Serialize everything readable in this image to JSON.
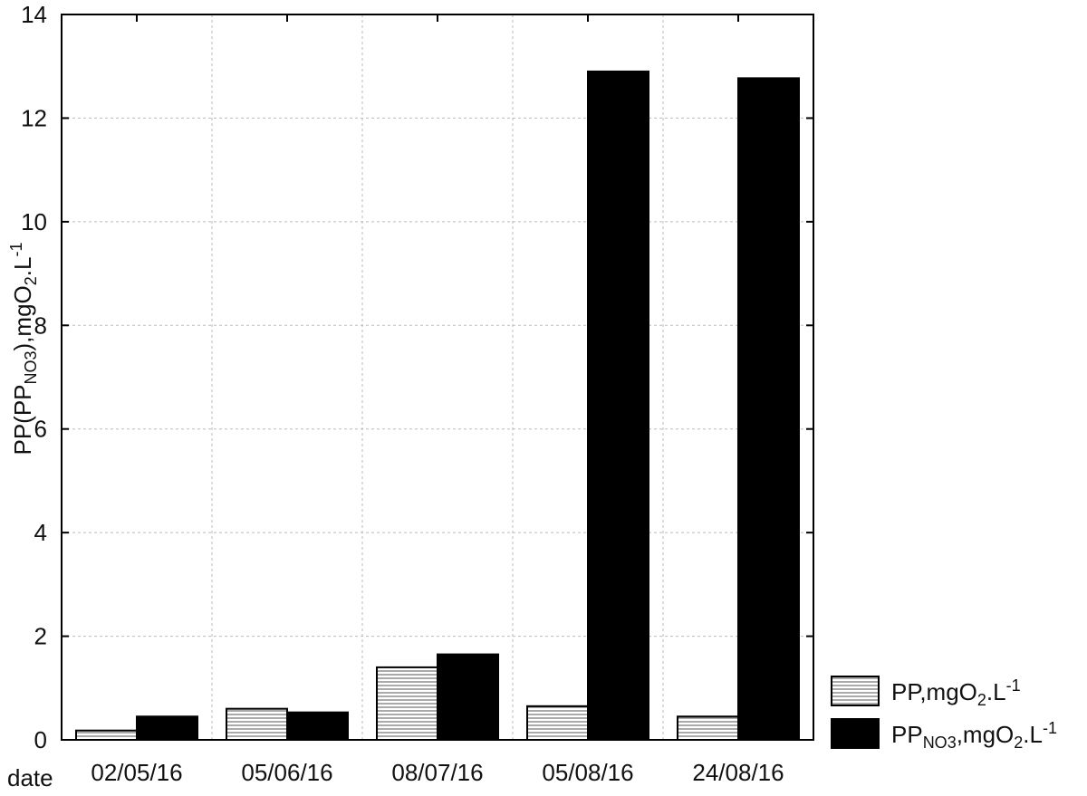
{
  "chart_data": {
    "type": "bar",
    "categories": [
      "02/05/16",
      "05/06/16",
      "08/07/16",
      "05/08/16",
      "24/08/16"
    ],
    "series": [
      {
        "name_main": "PP,mgO",
        "name_sub": "2",
        "name_suffix": ".L",
        "name_sup": "-1",
        "values": [
          0.18,
          0.6,
          1.4,
          0.65,
          0.45
        ],
        "fill": "hatched-gray"
      },
      {
        "name_main": "PP",
        "name_sub": "NO3",
        "name_mid": ",mgO",
        "name_sub2": "2",
        "name_suffix": ".L",
        "name_sup": "-1",
        "values": [
          0.45,
          0.53,
          1.65,
          12.9,
          12.77
        ],
        "fill": "#000000"
      }
    ],
    "xlabel": "date",
    "ylabel": {
      "part1": "PP(PP",
      "sub1": "NO3",
      "part2": "),mgO",
      "sub2": "2",
      "part3": ".L",
      "sup": "-1"
    },
    "ylim": [
      0,
      14
    ],
    "yticks": [
      "0",
      "2",
      "4",
      "6",
      "8",
      "10",
      "12",
      "14"
    ],
    "grid": true,
    "legend_position": "bottom-right"
  }
}
